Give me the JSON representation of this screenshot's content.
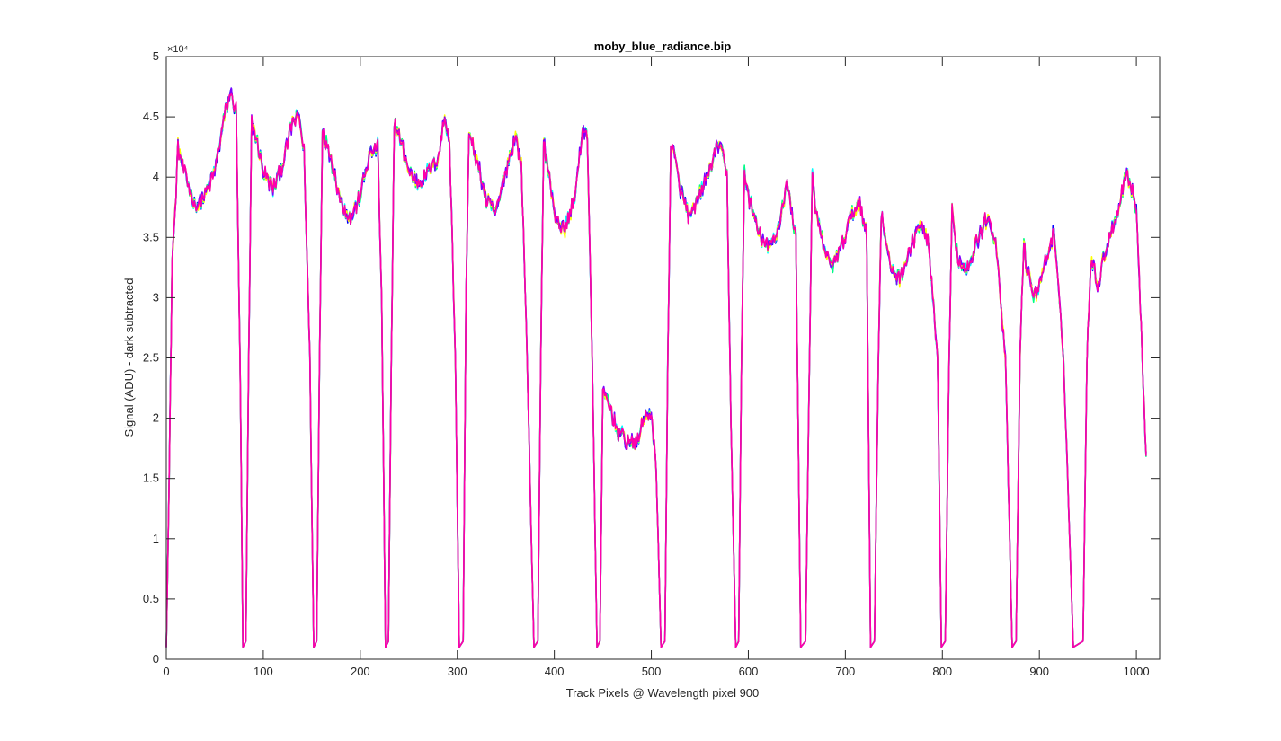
{
  "chart_data": {
    "type": "line",
    "title": "moby_blue_radiance.bip",
    "xlabel": "Track Pixels @ Wavelength pixel 900",
    "ylabel": "Signal (ADU) - dark subtracted",
    "y_exponent_label": "×10⁴",
    "y_exponent": 4,
    "xlim": [
      0,
      1024
    ],
    "ylim": [
      0,
      50000
    ],
    "xticks": [
      0,
      100,
      200,
      300,
      400,
      500,
      600,
      700,
      800,
      900,
      1000
    ],
    "xtick_labels": [
      "0",
      "100",
      "200",
      "300",
      "400",
      "500",
      "600",
      "700",
      "800",
      "900",
      "1000"
    ],
    "yticks": [
      0,
      5000,
      10000,
      15000,
      20000,
      25000,
      30000,
      35000,
      40000,
      45000,
      50000
    ],
    "ytick_labels": [
      "0",
      "0.5",
      "1",
      "1.5",
      "2",
      "2.5",
      "3",
      "3.5",
      "4",
      "4.5",
      "5"
    ],
    "grid": false,
    "legend": "none",
    "series_colors": [
      "#0000ff",
      "#00ffff",
      "#00ff80",
      "#ffff00",
      "#8000ff",
      "#ff00aa"
    ],
    "envelope_x": [
      0,
      3,
      6,
      9,
      12,
      20,
      30,
      40,
      50,
      60,
      66,
      72,
      76,
      79,
      82,
      85,
      88,
      92,
      100,
      110,
      120,
      130,
      137,
      142,
      148,
      152,
      155,
      158,
      161,
      164,
      170,
      180,
      190,
      200,
      210,
      218,
      222,
      226,
      229,
      232,
      235,
      240,
      250,
      260,
      270,
      280,
      287,
      292,
      298,
      302,
      306,
      309,
      312,
      320,
      330,
      340,
      350,
      360,
      366,
      372,
      379,
      383,
      386,
      389,
      392,
      400,
      410,
      420,
      430,
      434,
      439,
      444,
      447,
      450,
      455,
      465,
      475,
      485,
      495,
      500,
      505,
      510,
      514,
      517,
      520,
      523,
      530,
      540,
      550,
      560,
      570,
      578,
      582,
      587,
      590,
      593,
      596,
      600,
      610,
      620,
      630,
      640,
      649,
      654,
      659,
      663,
      666,
      669,
      675,
      685,
      695,
      705,
      715,
      722,
      726,
      730,
      734,
      737,
      740,
      745,
      755,
      765,
      775,
      785,
      795,
      799,
      803,
      807,
      810,
      813,
      817,
      825,
      835,
      845,
      855,
      865,
      872,
      876,
      880,
      884,
      887,
      890,
      895,
      905,
      915,
      925,
      935,
      945,
      949,
      953,
      958,
      961,
      964,
      970,
      980,
      990,
      1000,
      1010,
      1015,
      1019,
      1021,
      1024
    ],
    "envelope_y": [
      1000,
      15000,
      33000,
      37000,
      42500,
      40000,
      37500,
      38500,
      40500,
      45000,
      47000,
      45500,
      25000,
      1000,
      1500,
      25000,
      44500,
      43500,
      40500,
      39000,
      41000,
      44500,
      45000,
      42000,
      25000,
      1000,
      1500,
      25000,
      44000,
      43000,
      41500,
      38000,
      36500,
      38500,
      42000,
      42500,
      30000,
      1000,
      1500,
      25000,
      44500,
      43500,
      40500,
      39500,
      40500,
      41500,
      45000,
      43000,
      25000,
      1000,
      1500,
      30000,
      43500,
      41500,
      38000,
      37000,
      40500,
      43500,
      41000,
      25000,
      1000,
      1500,
      25000,
      43000,
      41500,
      37000,
      35500,
      38000,
      44000,
      43500,
      25000,
      1000,
      1500,
      22000,
      21500,
      19000,
      18000,
      18000,
      20500,
      20000,
      16000,
      1000,
      1500,
      25000,
      42500,
      42000,
      39000,
      36500,
      38500,
      40500,
      43000,
      40000,
      20000,
      1000,
      1500,
      25000,
      40500,
      38500,
      35500,
      34000,
      35500,
      39500,
      35000,
      1000,
      1500,
      25000,
      40000,
      37500,
      35000,
      32500,
      34000,
      36500,
      38000,
      35000,
      1000,
      1500,
      25000,
      37000,
      35500,
      33000,
      31500,
      33500,
      36000,
      35000,
      25000,
      1000,
      1500,
      25000,
      37000,
      35000,
      33000,
      32500,
      34500,
      36500,
      35000,
      25000,
      1000,
      1500,
      25000,
      34500,
      32500,
      31500,
      30000,
      32500,
      35500,
      25000,
      1000,
      1500,
      25000,
      33000,
      32000,
      31000,
      32500,
      34500,
      37000,
      40500,
      37500,
      17000
    ],
    "noise_amplitude": 700,
    "series_count": 6
  }
}
